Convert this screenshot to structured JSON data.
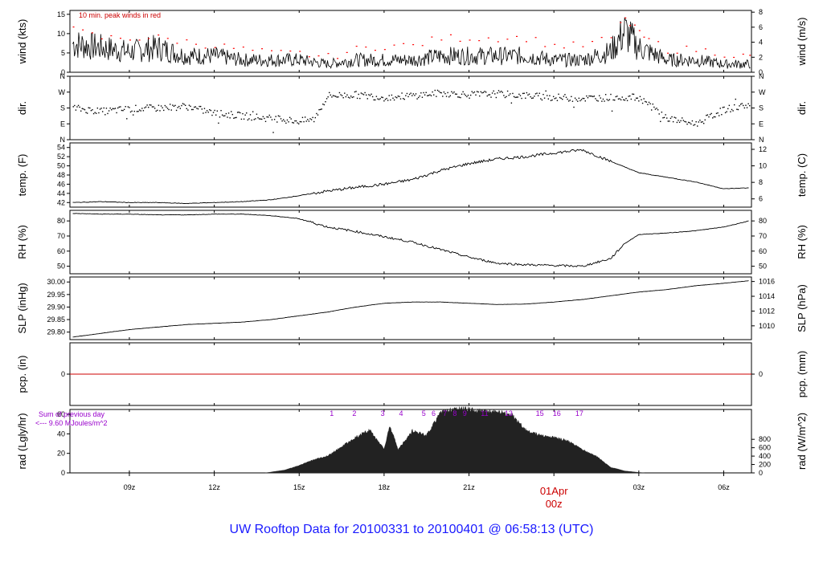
{
  "title": "UW Rooftop Data for 20100331  to  20100401 @ 06:58:13  (UTC)",
  "colors": {
    "trace": "#000000",
    "peak": "#ff0000",
    "pcp_line": "#cc0000",
    "rad_notes": "#9900cc",
    "date_label": "#cc0000",
    "title": "#1a1aff"
  },
  "x_axis": {
    "range_hours": [
      6.9,
      30.98
    ],
    "ticks": [
      {
        "t": 9,
        "label": "09z"
      },
      {
        "t": 12,
        "label": "12z"
      },
      {
        "t": 15,
        "label": "15z"
      },
      {
        "t": 18,
        "label": "18z"
      },
      {
        "t": 21,
        "label": "21z"
      },
      {
        "t": 24,
        "label": "00z"
      },
      {
        "t": 27,
        "label": "03z"
      },
      {
        "t": 30,
        "label": "06z"
      }
    ],
    "date_label": "01Apr",
    "date_tick": "00z"
  },
  "chart_data": [
    {
      "id": "wind",
      "type": "line",
      "ylabel": "wind (kts)",
      "ylabel_right": "wind (m/s)",
      "ylim": [
        0,
        16
      ],
      "left_ticks": [
        {
          "v": 0,
          "label": "0"
        },
        {
          "v": 5,
          "label": "5"
        },
        {
          "v": 10,
          "label": "10"
        },
        {
          "v": 15,
          "label": "15"
        }
      ],
      "right_ticks": [
        {
          "v": 0,
          "label": "0"
        },
        {
          "v": 3.888,
          "label": "2"
        },
        {
          "v": 7.776,
          "label": "4"
        },
        {
          "v": 11.664,
          "label": "6"
        },
        {
          "v": 15.552,
          "label": "8"
        }
      ],
      "annotation": "10 min. peak winds in red",
      "x": [
        7.0,
        8.0,
        9.0,
        10.0,
        11.0,
        12.0,
        13.0,
        14.0,
        15.0,
        16.0,
        17.0,
        18.0,
        19.0,
        20.0,
        21.0,
        22.0,
        23.0,
        24.0,
        25.0,
        26.0,
        26.5,
        27.0,
        28.0,
        29.0,
        30.0,
        30.9
      ],
      "y": [
        7,
        6,
        5,
        6,
        4,
        4,
        3,
        3,
        3,
        2,
        3,
        3,
        3,
        4,
        4,
        4,
        4,
        3,
        3,
        5,
        10,
        6,
        3,
        3,
        2,
        2
      ],
      "y_peak": [
        11,
        9,
        9,
        9,
        8,
        7,
        6,
        5,
        5,
        4,
        6,
        7,
        7,
        9,
        9,
        9,
        9,
        7,
        7,
        9,
        14,
        10,
        6,
        6,
        5,
        4
      ]
    },
    {
      "id": "dir",
      "type": "scatter",
      "ylabel": "dir.",
      "ylabel_right": "dir.",
      "ylim": [
        0,
        360
      ],
      "left_ticks": [
        {
          "v": 0,
          "label": "N"
        },
        {
          "v": 90,
          "label": "E"
        },
        {
          "v": 180,
          "label": "S"
        },
        {
          "v": 270,
          "label": "W"
        },
        {
          "v": 360,
          "label": "N"
        }
      ],
      "right_ticks": [
        {
          "v": 0,
          "label": "N"
        },
        {
          "v": 90,
          "label": "E"
        },
        {
          "v": 180,
          "label": "S"
        },
        {
          "v": 270,
          "label": "W"
        },
        {
          "v": 360,
          "label": "N"
        }
      ],
      "x": [
        7.0,
        8.0,
        9.0,
        10.0,
        11.0,
        12.0,
        13.0,
        14.0,
        15.0,
        15.5,
        16.0,
        17.0,
        18.0,
        19.0,
        20.0,
        21.0,
        22.0,
        23.0,
        24.0,
        25.0,
        26.0,
        27.0,
        28.0,
        29.0,
        30.0,
        30.9
      ],
      "y": [
        180,
        160,
        175,
        180,
        190,
        150,
        135,
        120,
        105,
        115,
        250,
        255,
        240,
        250,
        265,
        255,
        260,
        250,
        240,
        235,
        240,
        240,
        120,
        90,
        170,
        200
      ]
    },
    {
      "id": "temp",
      "type": "line",
      "ylabel": "temp. (F)",
      "ylabel_right": "temp. (C)",
      "ylim": [
        41,
        55
      ],
      "left_ticks": [
        {
          "v": 42,
          "label": "42"
        },
        {
          "v": 44,
          "label": "44"
        },
        {
          "v": 46,
          "label": "46"
        },
        {
          "v": 48,
          "label": "48"
        },
        {
          "v": 50,
          "label": "50"
        },
        {
          "v": 52,
          "label": "52"
        },
        {
          "v": 54,
          "label": "54"
        }
      ],
      "right_ticks": [
        {
          "v": 42.8,
          "label": "6"
        },
        {
          "v": 46.4,
          "label": "8"
        },
        {
          "v": 50.0,
          "label": "10"
        },
        {
          "v": 53.6,
          "label": "12"
        }
      ],
      "x": [
        7.0,
        8.0,
        9.0,
        10.0,
        11.0,
        12.0,
        13.0,
        14.0,
        15.0,
        16.0,
        17.0,
        18.0,
        19.0,
        20.0,
        21.0,
        22.0,
        23.0,
        24.0,
        25.0,
        26.0,
        27.0,
        28.0,
        29.0,
        30.0,
        30.9
      ],
      "y": [
        42.0,
        42.2,
        42.0,
        42.0,
        41.8,
        42.0,
        42.2,
        42.6,
        43.5,
        44.5,
        45.3,
        46.0,
        47.0,
        49.0,
        50.5,
        51.5,
        52.0,
        52.8,
        53.5,
        51.0,
        48.5,
        47.5,
        46.5,
        45.0,
        45.2
      ]
    },
    {
      "id": "rh",
      "type": "line",
      "ylabel": "RH (%)",
      "ylabel_right": "RH (%)",
      "ylim": [
        45,
        87
      ],
      "left_ticks": [
        {
          "v": 50,
          "label": "50"
        },
        {
          "v": 60,
          "label": "60"
        },
        {
          "v": 70,
          "label": "70"
        },
        {
          "v": 80,
          "label": "80"
        }
      ],
      "right_ticks": [
        {
          "v": 50,
          "label": "50"
        },
        {
          "v": 60,
          "label": "60"
        },
        {
          "v": 70,
          "label": "70"
        },
        {
          "v": 80,
          "label": "80"
        }
      ],
      "x": [
        7.0,
        8.0,
        9.0,
        10.0,
        11.0,
        12.0,
        13.0,
        14.0,
        15.0,
        16.0,
        17.0,
        18.0,
        19.0,
        20.0,
        21.0,
        22.0,
        23.0,
        24.0,
        25.0,
        26.0,
        26.5,
        27.0,
        28.0,
        29.0,
        30.0,
        30.9
      ],
      "y": [
        85.0,
        84.5,
        84.5,
        84.0,
        84.0,
        84.5,
        84.5,
        83.5,
        81.5,
        76.0,
        73.0,
        69.5,
        66.0,
        61.0,
        56.0,
        52.0,
        51.0,
        50.5,
        50.0,
        55.0,
        65.0,
        71.0,
        72.0,
        73.5,
        76.0,
        80.0
      ]
    },
    {
      "id": "slp",
      "type": "line",
      "ylabel": "SLP (inHg)",
      "ylabel_right": "SLP (hPa)",
      "ylim": [
        29.77,
        30.02
      ],
      "left_ticks": [
        {
          "v": 29.8,
          "label": "29.80"
        },
        {
          "v": 29.85,
          "label": "29.85"
        },
        {
          "v": 29.9,
          "label": "29.90"
        },
        {
          "v": 29.95,
          "label": "29.95"
        },
        {
          "v": 30.0,
          "label": "30.00"
        }
      ],
      "right_ticks": [
        {
          "v": 29.825,
          "label": "1010"
        },
        {
          "v": 29.884,
          "label": "1012"
        },
        {
          "v": 29.943,
          "label": "1014"
        },
        {
          "v": 30.002,
          "label": "1016"
        }
      ],
      "x": [
        7.0,
        8.0,
        9.0,
        10.0,
        11.0,
        12.0,
        13.0,
        14.0,
        15.0,
        16.0,
        17.0,
        18.0,
        19.0,
        20.0,
        21.0,
        22.0,
        23.0,
        24.0,
        25.0,
        26.0,
        27.0,
        28.0,
        29.0,
        30.0,
        30.9
      ],
      "y": [
        29.78,
        29.795,
        29.81,
        29.82,
        29.83,
        29.835,
        29.84,
        29.85,
        29.865,
        29.88,
        29.9,
        29.915,
        29.92,
        29.92,
        29.915,
        29.91,
        29.912,
        29.92,
        29.93,
        29.945,
        29.96,
        29.97,
        29.985,
        29.995,
        30.005
      ]
    },
    {
      "id": "pcp",
      "type": "line",
      "ylabel": "pcp. (in)",
      "ylabel_right": "pcp. (mm)",
      "ylim": [
        -1,
        1
      ],
      "left_ticks": [
        {
          "v": 0,
          "label": "0"
        }
      ],
      "right_ticks": [
        {
          "v": 0,
          "label": "0"
        }
      ],
      "x": [
        6.9,
        30.98
      ],
      "y": [
        0,
        0
      ]
    },
    {
      "id": "rad",
      "type": "area",
      "ylabel": "rad (Lgly/hr)",
      "ylabel_right": "rad (W/m^2)",
      "ylim": [
        0,
        65
      ],
      "left_ticks": [
        {
          "v": 0,
          "label": "0"
        },
        {
          "v": 20,
          "label": "20"
        },
        {
          "v": 40,
          "label": "40"
        },
        {
          "v": 60,
          "label": "60"
        }
      ],
      "right_ticks": [
        {
          "v": 0,
          "label": "0"
        },
        {
          "v": 8.6,
          "label": "200"
        },
        {
          "v": 17.2,
          "label": "400"
        },
        {
          "v": 25.8,
          "label": "600"
        },
        {
          "v": 34.4,
          "label": "800"
        }
      ],
      "annotation_line1": "Sum of previous day",
      "annotation_line2": "<--- 9.60 MJoules/m^2",
      "event_labels": [
        {
          "t": 16.15,
          "label": "1"
        },
        {
          "t": 16.95,
          "label": "2"
        },
        {
          "t": 17.95,
          "label": "3"
        },
        {
          "t": 18.6,
          "label": "4"
        },
        {
          "t": 19.4,
          "label": "5"
        },
        {
          "t": 19.75,
          "label": "6"
        },
        {
          "t": 20.15,
          "label": "7"
        },
        {
          "t": 20.5,
          "label": "8"
        },
        {
          "t": 20.85,
          "label": "9"
        },
        {
          "t": 21.55,
          "label": "11"
        },
        {
          "t": 22.4,
          "label": "13"
        },
        {
          "t": 23.5,
          "label": "15"
        },
        {
          "t": 24.1,
          "label": "16"
        },
        {
          "t": 24.9,
          "label": "17"
        }
      ],
      "x": [
        13.8,
        14.5,
        15.0,
        15.5,
        16.0,
        16.5,
        17.0,
        17.5,
        18.0,
        18.2,
        18.5,
        19.0,
        19.5,
        20.0,
        20.5,
        21.0,
        21.5,
        22.0,
        22.5,
        23.0,
        23.5,
        24.0,
        24.5,
        25.0,
        25.5,
        26.0,
        26.5,
        27.0,
        27.2
      ],
      "y": [
        0,
        3,
        8,
        14,
        18,
        28,
        38,
        46,
        25,
        50,
        25,
        45,
        40,
        65,
        68,
        68,
        66,
        65,
        62,
        46,
        40,
        38,
        34,
        25,
        18,
        6,
        2,
        0.5,
        0
      ]
    }
  ]
}
